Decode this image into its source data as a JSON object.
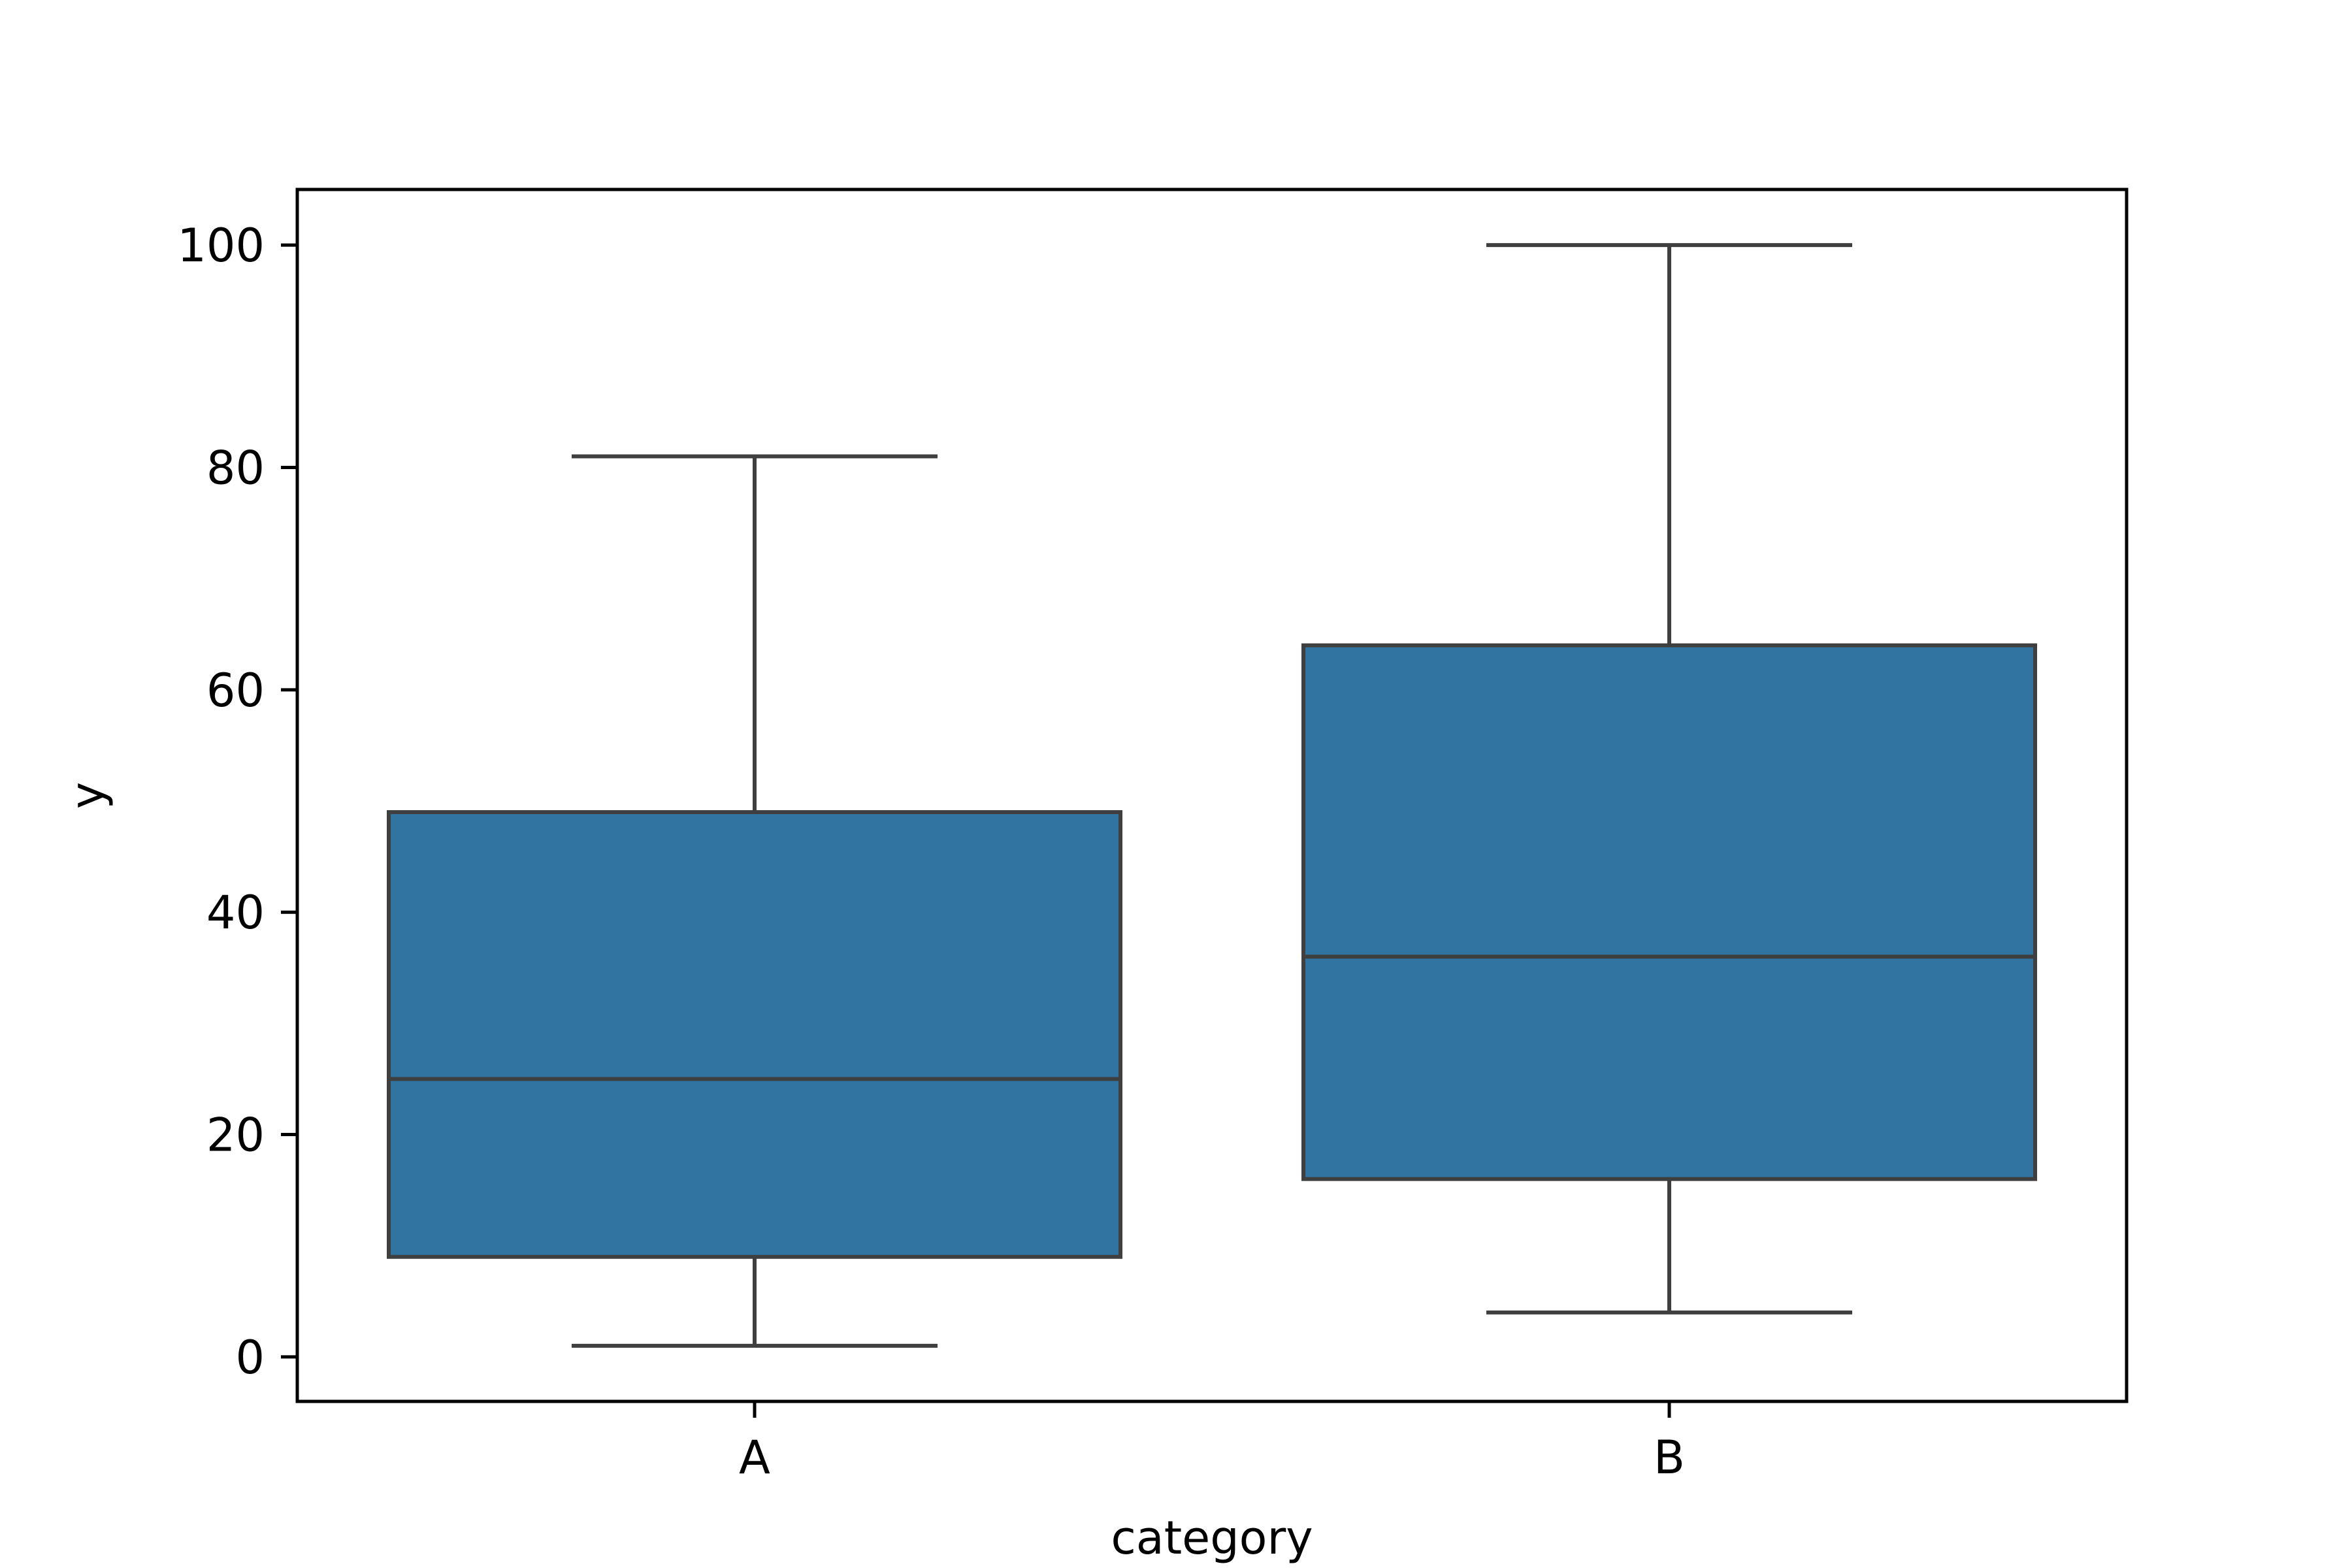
{
  "chart_data": {
    "type": "box",
    "categories": [
      "A",
      "B"
    ],
    "boxes": [
      {
        "category": "A",
        "whisker_low": 1,
        "q1": 9,
        "median": 25,
        "q3": 49,
        "whisker_high": 81
      },
      {
        "category": "B",
        "whisker_low": 4,
        "q1": 16,
        "median": 36,
        "q3": 64,
        "whisker_high": 100
      }
    ],
    "xlabel": "category",
    "ylabel": "y",
    "ylim": [
      -4,
      105
    ],
    "yticks": [
      0,
      20,
      40,
      60,
      80,
      100
    ],
    "grid": false,
    "colors": {
      "box_fill": "#3274a1",
      "line": "#3f3f3f",
      "axis": "#000000"
    }
  }
}
